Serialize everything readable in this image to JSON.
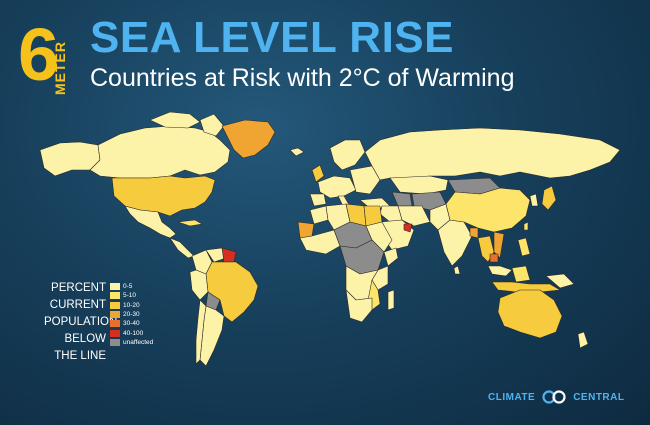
{
  "title": {
    "number": "6",
    "unit": "METER",
    "main": "SEA LEVEL RISE",
    "subtitle": "Countries at Risk with 2°C of Warming"
  },
  "legend": {
    "heading_lines": [
      "PERCENT",
      "CURRENT",
      "POPULATION",
      "BELOW",
      "THE LINE"
    ],
    "items": [
      {
        "label": "0-5",
        "color": "#fdf3a8"
      },
      {
        "label": "5-10",
        "color": "#fde46a"
      },
      {
        "label": "10-20",
        "color": "#f7cb3e"
      },
      {
        "label": "20-30",
        "color": "#f0a532"
      },
      {
        "label": "30-40",
        "color": "#e8702a"
      },
      {
        "label": "40-100",
        "color": "#d62f22"
      },
      {
        "label": "unaffected",
        "color": "#8c8c8c"
      }
    ]
  },
  "brand": {
    "left": "CLIMATE",
    "right": "CENTRAL"
  },
  "colors": {
    "ocean": "#17405c",
    "title_accent": "#4fb3f0",
    "number_accent": "#f5c21b"
  }
}
